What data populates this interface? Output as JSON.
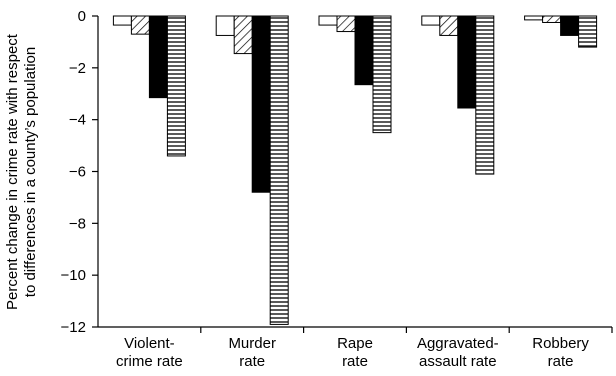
{
  "chart_data": {
    "type": "bar",
    "ylabel_lines": [
      "Percent change in crime rate with respect",
      "to differences in a county’s population"
    ],
    "categories": [
      [
        "Violent-",
        "crime rate"
      ],
      [
        "Murder",
        "rate"
      ],
      [
        "Rape",
        "rate"
      ],
      [
        "Aggravated-",
        "assault rate"
      ],
      [
        "Robbery",
        "rate"
      ]
    ],
    "ylim": [
      -12,
      0
    ],
    "yticks": [
      "0",
      "−2",
      "−4",
      "−6",
      "−8",
      "−10",
      "−12"
    ],
    "ytick_values": [
      0,
      -2,
      -4,
      -6,
      -8,
      -10,
      -12
    ],
    "series": [
      {
        "pattern": "white",
        "values": [
          -0.35,
          -0.75,
          -0.35,
          -0.35,
          -0.15
        ]
      },
      {
        "pattern": "diagonal",
        "values": [
          -0.7,
          -1.45,
          -0.6,
          -0.75,
          -0.25
        ]
      },
      {
        "pattern": "black",
        "values": [
          -3.15,
          -6.8,
          -2.65,
          -3.55,
          -0.75
        ]
      },
      {
        "pattern": "horizontal",
        "values": [
          -5.4,
          -11.9,
          -4.5,
          -6.1,
          -1.2
        ]
      }
    ],
    "grid": false,
    "legend": "none"
  }
}
